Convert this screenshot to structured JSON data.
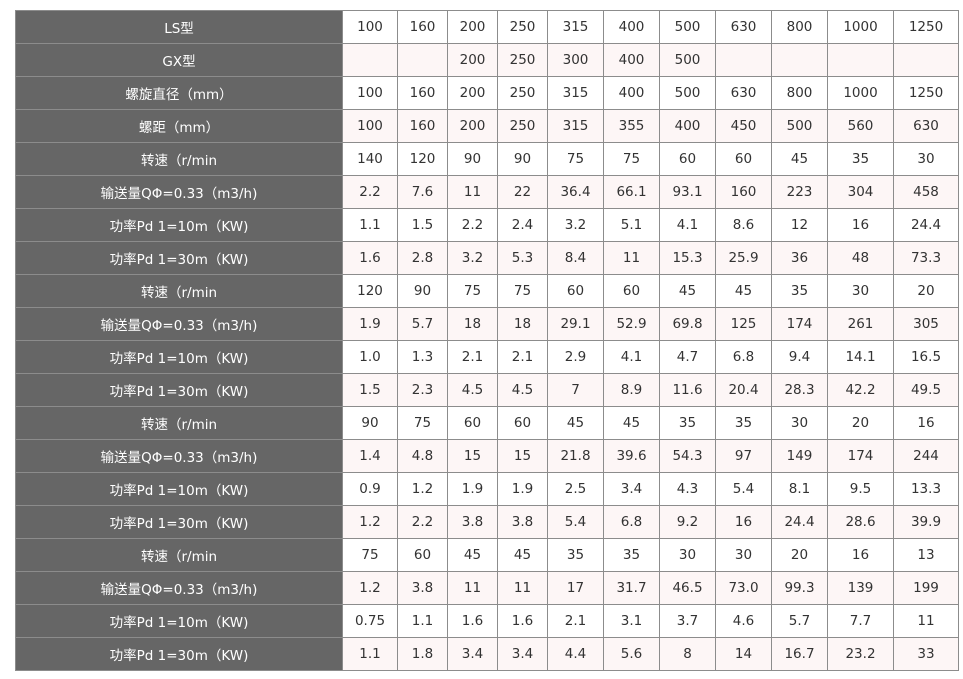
{
  "rows": [
    {
      "label": "LS型",
      "values": [
        "100",
        "160",
        "200",
        "250",
        "315",
        "400",
        "500",
        "630",
        "800",
        "1000",
        "1250"
      ]
    },
    {
      "label": "GX型",
      "values": [
        "",
        "",
        "200",
        "250",
        "300",
        "400",
        "500",
        "",
        "",
        "",
        ""
      ]
    },
    {
      "label": "螺旋直径（mm）",
      "values": [
        "100",
        "160",
        "200",
        "250",
        "315",
        "400",
        "500",
        "630",
        "800",
        "1000",
        "1250"
      ]
    },
    {
      "label": "螺距（mm）",
      "values": [
        "100",
        "160",
        "200",
        "250",
        "315",
        "355",
        "400",
        "450",
        "500",
        "560",
        "630"
      ]
    },
    {
      "label": "转速（r/min",
      "values": [
        "140",
        "120",
        "90",
        "90",
        "75",
        "75",
        "60",
        "60",
        "45",
        "35",
        "30"
      ]
    },
    {
      "label": "输送量QΦ=0.33（m3/h)",
      "values": [
        "2.2",
        "7.6",
        "11",
        "22",
        "36.4",
        "66.1",
        "93.1",
        "160",
        "223",
        "304",
        "458"
      ]
    },
    {
      "label": "功率Pd 1=10m（KW)",
      "values": [
        "1.1",
        "1.5",
        "2.2",
        "2.4",
        "3.2",
        "5.1",
        "4.1",
        "8.6",
        "12",
        "16",
        "24.4"
      ]
    },
    {
      "label": "功率Pd 1=30m（KW)",
      "values": [
        "1.6",
        "2.8",
        "3.2",
        "5.3",
        "8.4",
        "11",
        "15.3",
        "25.9",
        "36",
        "48",
        "73.3"
      ]
    },
    {
      "label": "转速（r/min",
      "values": [
        "120",
        "90",
        "75",
        "75",
        "60",
        "60",
        "45",
        "45",
        "35",
        "30",
        "20"
      ]
    },
    {
      "label": "输送量QΦ=0.33（m3/h)",
      "values": [
        "1.9",
        "5.7",
        "18",
        "18",
        "29.1",
        "52.9",
        "69.8",
        "125",
        "174",
        "261",
        "305"
      ]
    },
    {
      "label": "功率Pd 1=10m（KW)",
      "values": [
        "1.0",
        "1.3",
        "2.1",
        "2.1",
        "2.9",
        "4.1",
        "4.7",
        "6.8",
        "9.4",
        "14.1",
        "16.5"
      ]
    },
    {
      "label": "功率Pd 1=30m（KW)",
      "values": [
        "1.5",
        "2.3",
        "4.5",
        "4.5",
        "7",
        "8.9",
        "11.6",
        "20.4",
        "28.3",
        "42.2",
        "49.5"
      ]
    },
    {
      "label": "转速（r/min",
      "values": [
        "90",
        "75",
        "60",
        "60",
        "45",
        "45",
        "35",
        "35",
        "30",
        "20",
        "16"
      ]
    },
    {
      "label": "输送量QΦ=0.33（m3/h)",
      "values": [
        "1.4",
        "4.8",
        "15",
        "15",
        "21.8",
        "39.6",
        "54.3",
        "97",
        "149",
        "174",
        "244"
      ]
    },
    {
      "label": "功率Pd 1=10m（KW)",
      "values": [
        "0.9",
        "1.2",
        "1.9",
        "1.9",
        "2.5",
        "3.4",
        "4.3",
        "5.4",
        "8.1",
        "9.5",
        "13.3"
      ]
    },
    {
      "label": "功率Pd 1=30m（KW)",
      "values": [
        "1.2",
        "2.2",
        "3.8",
        "3.8",
        "5.4",
        "6.8",
        "9.2",
        "16",
        "24.4",
        "28.6",
        "39.9"
      ]
    },
    {
      "label": "转速（r/min",
      "values": [
        "75",
        "60",
        "45",
        "45",
        "35",
        "35",
        "30",
        "30",
        "20",
        "16",
        "13"
      ]
    },
    {
      "label": "输送量QΦ=0.33（m3/h)",
      "values": [
        "1.2",
        "3.8",
        "11",
        "11",
        "17",
        "31.7",
        "46.5",
        "73.0",
        "99.3",
        "139",
        "199"
      ]
    },
    {
      "label": "功率Pd 1=10m（KW)",
      "values": [
        "0.75",
        "1.1",
        "1.6",
        "1.6",
        "2.1",
        "3.1",
        "3.7",
        "4.6",
        "5.7",
        "7.7",
        "11"
      ]
    },
    {
      "label": "功率Pd 1=30m（KW)",
      "values": [
        "1.1",
        "1.8",
        "3.4",
        "3.4",
        "4.4",
        "5.6",
        "8",
        "14",
        "16.7",
        "23.2",
        "33"
      ]
    }
  ],
  "colors": {
    "header_bg": "#666666",
    "alt_row_bg": "#fdf6f6",
    "border": "#8c8c8c"
  }
}
